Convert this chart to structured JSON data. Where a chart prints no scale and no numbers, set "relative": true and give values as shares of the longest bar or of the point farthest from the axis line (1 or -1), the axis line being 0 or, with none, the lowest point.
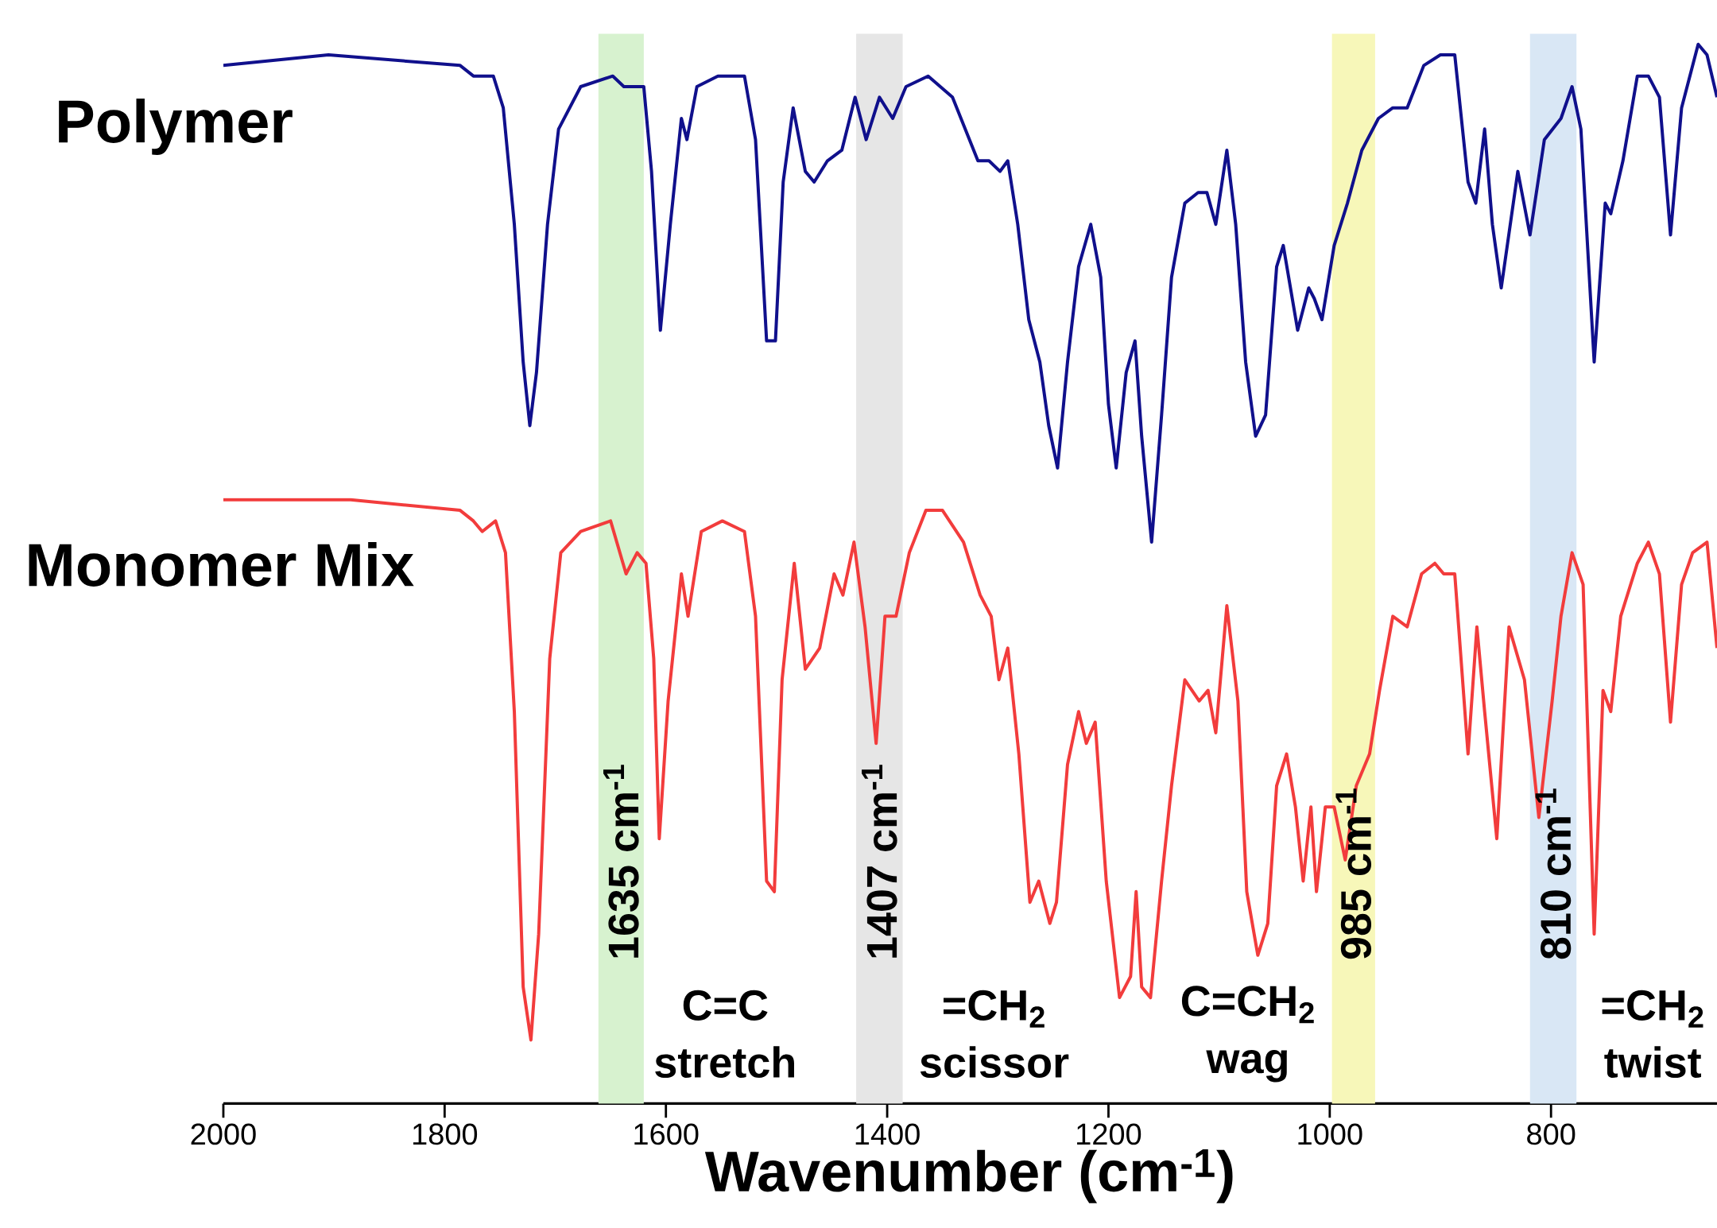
{
  "chart_data": {
    "type": "line",
    "relative": true,
    "xlabel": "Wavenumber (cm$^{-1}$)",
    "xlim": [
      2000,
      650
    ],
    "xticks": [
      2000,
      1800,
      1600,
      1400,
      1200,
      1000,
      800
    ],
    "series": [
      {
        "name": "Polymer",
        "color": "#10108c",
        "x": [
          2000,
          1905,
          1786,
          1774,
          1769,
          1756,
          1747,
          1737,
          1729,
          1723,
          1717,
          1707,
          1697,
          1677,
          1648,
          1638,
          1620,
          1613,
          1605,
          1596,
          1586,
          1581,
          1572,
          1553,
          1529,
          1519,
          1509,
          1501,
          1494,
          1485,
          1474,
          1466,
          1454,
          1441,
          1429,
          1419,
          1407,
          1395,
          1383,
          1363,
          1341,
          1318,
          1308,
          1298,
          1291,
          1282,
          1272,
          1262,
          1254,
          1246,
          1237,
          1227,
          1216,
          1207,
          1200,
          1193,
          1184,
          1176,
          1170,
          1161,
          1152,
          1143,
          1131,
          1119,
          1111,
          1103,
          1093,
          1085,
          1076,
          1067,
          1058,
          1048,
          1042,
          1029,
          1019,
          1014,
          1007,
          996,
          984,
          971,
          956,
          943,
          930,
          915,
          900,
          887,
          875,
          868,
          860,
          853,
          845,
          830,
          819,
          806,
          791,
          781,
          773,
          761,
          751,
          746,
          735,
          722,
          712,
          702,
          692,
          682,
          667,
          659,
          650
        ],
        "values": [
          0.98,
          0.99,
          0.98,
          0.97,
          0.97,
          0.97,
          0.94,
          0.83,
          0.7,
          0.64,
          0.69,
          0.83,
          0.92,
          0.96,
          0.97,
          0.96,
          0.96,
          0.88,
          0.73,
          0.83,
          0.93,
          0.91,
          0.96,
          0.97,
          0.97,
          0.91,
          0.72,
          0.72,
          0.87,
          0.94,
          0.88,
          0.87,
          0.89,
          0.9,
          0.95,
          0.91,
          0.95,
          0.93,
          0.96,
          0.97,
          0.95,
          0.89,
          0.89,
          0.88,
          0.89,
          0.83,
          0.74,
          0.7,
          0.64,
          0.6,
          0.7,
          0.79,
          0.83,
          0.78,
          0.66,
          0.6,
          0.69,
          0.72,
          0.63,
          0.53,
          0.65,
          0.78,
          0.85,
          0.86,
          0.86,
          0.83,
          0.9,
          0.83,
          0.7,
          0.63,
          0.65,
          0.79,
          0.81,
          0.73,
          0.77,
          0.76,
          0.74,
          0.81,
          0.85,
          0.9,
          0.93,
          0.94,
          0.94,
          0.98,
          0.99,
          0.99,
          0.87,
          0.85,
          0.92,
          0.83,
          0.77,
          0.88,
          0.82,
          0.91,
          0.93,
          0.96,
          0.92,
          0.7,
          0.85,
          0.84,
          0.89,
          0.97,
          0.97,
          0.95,
          0.82,
          0.94,
          1.0,
          0.99,
          0.95
        ]
      },
      {
        "name": "Monomer Mix",
        "color": "#f23c3c",
        "x": [
          2000,
          1945,
          1925,
          1885,
          1786,
          1774,
          1766,
          1754,
          1745,
          1737,
          1729,
          1722,
          1715,
          1705,
          1695,
          1677,
          1650,
          1636,
          1626,
          1618,
          1611,
          1606,
          1598,
          1586,
          1580,
          1568,
          1549,
          1529,
          1519,
          1509,
          1502,
          1495,
          1484,
          1474,
          1461,
          1448,
          1440,
          1430,
          1420,
          1410,
          1402,
          1392,
          1380,
          1365,
          1350,
          1331,
          1316,
          1306,
          1299,
          1291,
          1281,
          1271,
          1263,
          1253,
          1247,
          1237,
          1227,
          1220,
          1212,
          1202,
          1190,
          1180,
          1175,
          1170,
          1162,
          1152,
          1143,
          1131,
          1118,
          1110,
          1103,
          1093,
          1083,
          1075,
          1065,
          1056,
          1048,
          1039,
          1031,
          1024,
          1017,
          1012,
          1004,
          996,
          986,
          976,
          964,
          955,
          943,
          930,
          917,
          905,
          897,
          887,
          875,
          867,
          860,
          849,
          838,
          824,
          811,
          799,
          791,
          781,
          771,
          761,
          753,
          746,
          737,
          722,
          712,
          702,
          692,
          682,
          672,
          659,
          650
        ],
        "values": [
          0.57,
          0.57,
          0.57,
          0.57,
          0.56,
          0.55,
          0.54,
          0.55,
          0.52,
          0.37,
          0.11,
          0.06,
          0.16,
          0.42,
          0.52,
          0.54,
          0.55,
          0.5,
          0.52,
          0.51,
          0.42,
          0.25,
          0.38,
          0.5,
          0.46,
          0.54,
          0.55,
          0.54,
          0.46,
          0.21,
          0.2,
          0.4,
          0.51,
          0.41,
          0.43,
          0.5,
          0.48,
          0.53,
          0.45,
          0.34,
          0.46,
          0.46,
          0.52,
          0.56,
          0.56,
          0.53,
          0.48,
          0.46,
          0.4,
          0.43,
          0.33,
          0.19,
          0.21,
          0.17,
          0.19,
          0.32,
          0.37,
          0.34,
          0.36,
          0.21,
          0.1,
          0.12,
          0.2,
          0.11,
          0.1,
          0.21,
          0.3,
          0.4,
          0.38,
          0.39,
          0.35,
          0.47,
          0.38,
          0.2,
          0.14,
          0.17,
          0.3,
          0.33,
          0.28,
          0.21,
          0.28,
          0.2,
          0.28,
          0.28,
          0.23,
          0.3,
          0.33,
          0.39,
          0.46,
          0.45,
          0.5,
          0.51,
          0.5,
          0.5,
          0.33,
          0.45,
          0.37,
          0.25,
          0.45,
          0.4,
          0.27,
          0.38,
          0.46,
          0.52,
          0.49,
          0.16,
          0.39,
          0.37,
          0.46,
          0.51,
          0.53,
          0.5,
          0.36,
          0.49,
          0.52,
          0.53,
          0.43
        ]
      }
    ],
    "bands": [
      {
        "axis": "x",
        "from": 1661,
        "to": 1620,
        "label": "1635 cm$^{-1}$",
        "color": "#d7f2cf"
      },
      {
        "axis": "x",
        "from": 1428,
        "to": 1386,
        "label": "1407 cm$^{-1}$",
        "color": "#e6e6e6"
      },
      {
        "axis": "x",
        "from": 998,
        "to": 959,
        "label": "985 cm$^{-1}$",
        "color": "#f7f7b9"
      },
      {
        "axis": "x",
        "from": 819,
        "to": 777,
        "label": "810 cm$^{-1}$",
        "color": "#d9e7f5"
      }
    ],
    "annotations": [
      "C=C stretch",
      "=CH$_{2}$ scissor",
      "C=CH$_{2}$ wag",
      "=CH$_{2}$ twist"
    ]
  }
}
